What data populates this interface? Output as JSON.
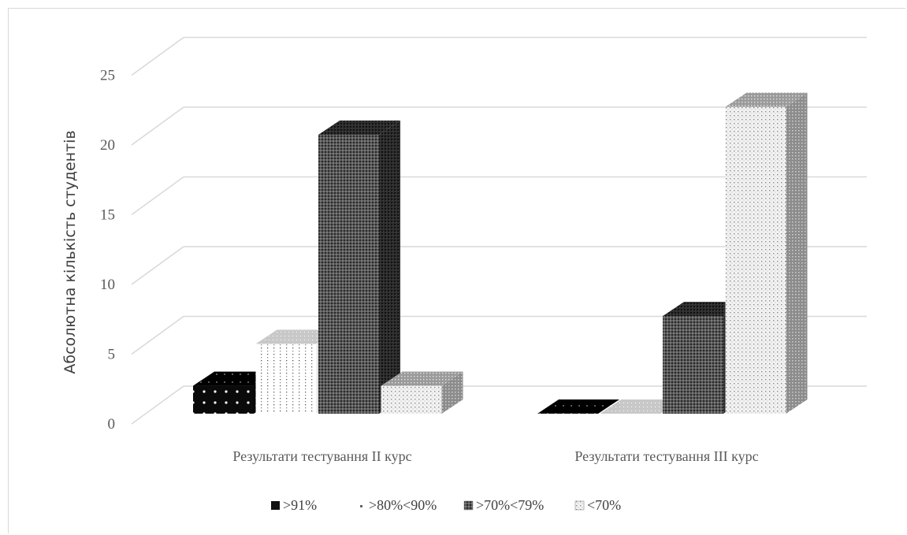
{
  "chart_data": {
    "type": "bar",
    "style": "3d-clustered",
    "title": "",
    "xlabel": "",
    "ylabel": "Абсолютна кількість студентів",
    "ylim": [
      0,
      25
    ],
    "yticks": [
      0,
      5,
      10,
      15,
      20,
      25
    ],
    "grid": true,
    "legend_position": "bottom",
    "categories": [
      "Результати тестування II курс",
      "Результати тестування III курс"
    ],
    "series": [
      {
        "name": ">91%",
        "values": [
          2,
          0
        ],
        "pattern": "black-dots"
      },
      {
        "name": ">80%<90%",
        "values": [
          5,
          0
        ],
        "pattern": "white-sparse-dots"
      },
      {
        "name": ">70%<79%",
        "values": [
          20,
          7
        ],
        "pattern": "dark-dense"
      },
      {
        "name": "<70%",
        "values": [
          2,
          22
        ],
        "pattern": "light-dots"
      }
    ]
  }
}
